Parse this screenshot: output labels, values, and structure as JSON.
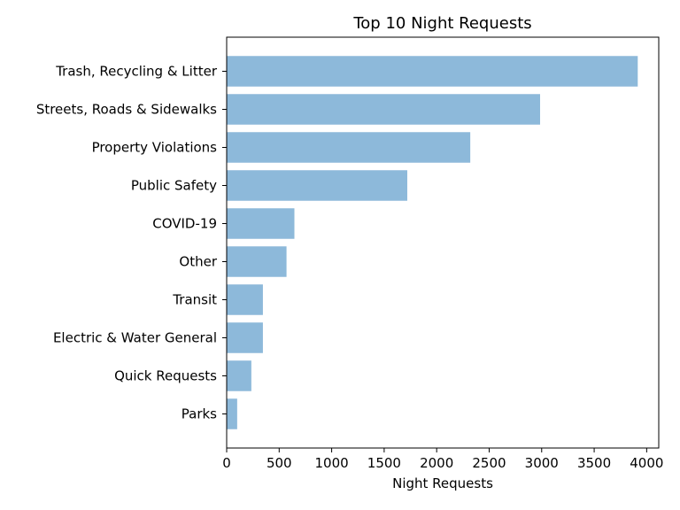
{
  "chart_data": {
    "type": "bar",
    "orientation": "horizontal",
    "title": "Top 10 Night Requests",
    "xlabel": "Night Requests",
    "ylabel": "",
    "categories": [
      "Trash, Recycling & Litter",
      "Streets, Roads & Sidewalks",
      "Property Violations",
      "Public Safety",
      "COVID-19",
      "Other",
      "Transit",
      "Electric & Water General",
      "Quick Requests",
      "Parks"
    ],
    "values": [
      3915,
      2985,
      2320,
      1720,
      645,
      570,
      345,
      345,
      235,
      100
    ],
    "xlim": [
      0,
      4115
    ],
    "xticks": [
      0,
      500,
      1000,
      1500,
      2000,
      2500,
      3000,
      3500,
      4000
    ],
    "grid": false,
    "bar_color": "#8db9da",
    "bar_alpha": 1
  }
}
